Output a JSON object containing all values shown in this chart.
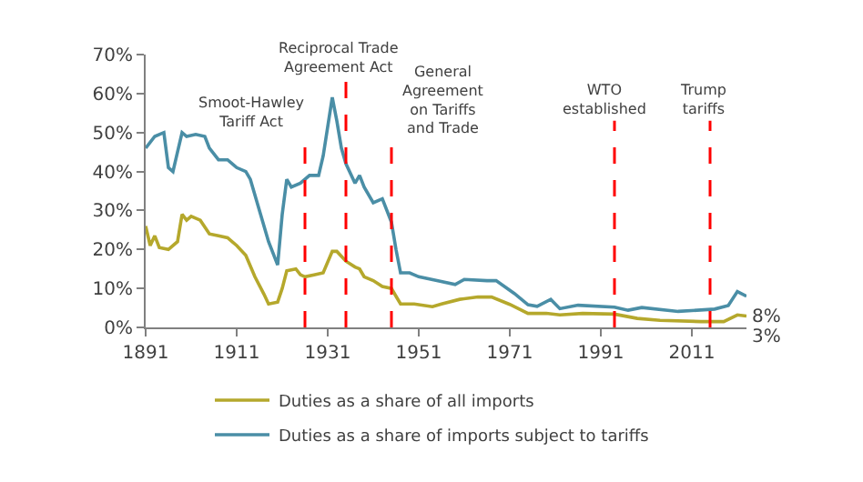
{
  "chart_data": {
    "type": "line",
    "xlim": [
      1891,
      2023
    ],
    "xticks": [
      1891,
      1911,
      1931,
      1951,
      1971,
      1991,
      2011
    ],
    "ylim": [
      0,
      70
    ],
    "yticks": [
      {
        "value": 0,
        "label": "0%"
      },
      {
        "value": 10,
        "label": "10%"
      },
      {
        "value": 20,
        "label": "20%"
      },
      {
        "value": 30,
        "label": "30%"
      },
      {
        "value": 40,
        "label": "40%"
      },
      {
        "value": 50,
        "label": "50%"
      },
      {
        "value": 60,
        "label": "60%"
      },
      {
        "value": 70,
        "label": "70%"
      }
    ],
    "legend": "bottom",
    "marker": "none",
    "line_style": "solid",
    "series": [
      {
        "name": "Duties as a share of all imports",
        "color": "#b5a82c",
        "x": [
          1891,
          1892,
          1893,
          1894,
          1896,
          1898,
          1899,
          1900,
          1901,
          1903,
          1905,
          1907,
          1909,
          1911,
          1913,
          1915,
          1917,
          1918,
          1920,
          1921,
          1922,
          1924,
          1925,
          1926,
          1928,
          1930,
          1932,
          1933,
          1935,
          1937,
          1938,
          1939,
          1941,
          1943,
          1945,
          1946,
          1947,
          1950,
          1954,
          1956,
          1960,
          1964,
          1967,
          1971,
          1975,
          1979,
          1982,
          1987,
          1994,
          1999,
          2004,
          2013,
          2018,
          2021,
          2023
        ],
        "values": [
          26,
          21,
          23.5,
          20.5,
          20,
          22,
          29,
          27.5,
          28.5,
          27.5,
          24,
          23.5,
          23,
          21,
          18.5,
          13,
          8.5,
          6,
          6.5,
          10,
          14.5,
          15,
          13.5,
          13,
          13.5,
          14,
          19.5,
          19.5,
          17,
          15.5,
          15,
          13,
          12,
          10.5,
          10,
          8,
          6,
          6,
          5.3,
          6,
          7.2,
          7.8,
          7.8,
          5.9,
          3.6,
          3.6,
          3.2,
          3.6,
          3.4,
          2.3,
          1.8,
          1.5,
          1.5,
          3.2,
          2.9
        ]
      },
      {
        "name": "Duties as a share of imports subject to tariffs",
        "color": "#4a8ea6",
        "x": [
          1891,
          1893,
          1895,
          1896,
          1897,
          1898,
          1899,
          1900,
          1902,
          1904,
          1905,
          1907,
          1909,
          1911,
          1913,
          1914,
          1916,
          1918,
          1920,
          1921,
          1922,
          1923,
          1925,
          1927,
          1929,
          1930,
          1932,
          1933,
          1934,
          1935,
          1937,
          1938,
          1939,
          1941,
          1943,
          1945,
          1946,
          1947,
          1949,
          1951,
          1955,
          1959,
          1961,
          1966,
          1968,
          1972,
          1975,
          1977,
          1980,
          1982,
          1986,
          1994,
          1997,
          2000,
          2008,
          2016,
          2019,
          2021,
          2023
        ],
        "values": [
          46,
          49,
          50,
          41,
          40,
          45,
          50,
          49,
          49.5,
          49,
          46,
          43,
          43,
          41,
          40,
          38,
          30,
          22,
          16,
          29,
          38,
          36,
          37,
          39,
          39,
          44,
          59,
          53,
          46,
          42,
          37,
          39,
          36,
          32,
          33,
          27,
          20,
          14,
          14,
          13,
          12,
          11,
          12.3,
          12,
          12,
          8.7,
          5.8,
          5.4,
          7.2,
          4.8,
          5.7,
          5.2,
          4.4,
          5.1,
          4.1,
          4.7,
          5.6,
          9.2,
          8
        ]
      }
    ],
    "ref_lines": [
      {
        "axis": "x",
        "value": 1926,
        "label": "Smoot-Hawley\nTariff Act",
        "color": "#ff0000",
        "line_style": "dashed"
      },
      {
        "axis": "x",
        "value": 1935,
        "label": "Reciprocal Trade\nAgreement Act",
        "color": "#ff0000",
        "line_style": "dashed"
      },
      {
        "axis": "x",
        "value": 1945,
        "label": "General\nAgreement\non Tariffs\nand Trade",
        "color": "#ff0000",
        "line_style": "dashed"
      },
      {
        "axis": "x",
        "value": 1994,
        "label": "WTO\nestablished",
        "color": "#ff0000",
        "line_style": "dashed"
      },
      {
        "axis": "x",
        "value": 2015,
        "label": "Trump\ntariffs",
        "color": "#ff0000",
        "line_style": "dashed"
      }
    ],
    "annotations": [
      {
        "text": "8%",
        "x": 2023,
        "y": 8
      },
      {
        "text": "3%",
        "x": 2023,
        "y": 3
      }
    ]
  }
}
